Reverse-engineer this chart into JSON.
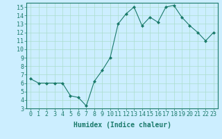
{
  "x": [
    0,
    1,
    2,
    3,
    4,
    5,
    6,
    7,
    8,
    9,
    10,
    11,
    12,
    13,
    14,
    15,
    16,
    17,
    18,
    19,
    20,
    21,
    22,
    23
  ],
  "y": [
    6.5,
    6.0,
    6.0,
    6.0,
    6.0,
    4.5,
    4.3,
    3.3,
    6.2,
    7.5,
    9.0,
    13.0,
    14.2,
    15.0,
    12.8,
    13.8,
    13.2,
    15.0,
    15.2,
    13.8,
    12.8,
    12.0,
    11.0,
    12.0
  ],
  "line_color": "#1a7a6a",
  "marker": "D",
  "marker_size": 2,
  "bg_color": "#cceeff",
  "grid_color": "#aaddcc",
  "xlabel": "Humidex (Indice chaleur)",
  "xlim": [
    -0.5,
    23.5
  ],
  "ylim": [
    3,
    15.5
  ],
  "yticks": [
    3,
    4,
    5,
    6,
    7,
    8,
    9,
    10,
    11,
    12,
    13,
    14,
    15
  ],
  "xticks": [
    0,
    1,
    2,
    3,
    4,
    5,
    6,
    7,
    8,
    9,
    10,
    11,
    12,
    13,
    14,
    15,
    16,
    17,
    18,
    19,
    20,
    21,
    22,
    23
  ],
  "xlabel_fontsize": 7,
  "tick_fontsize": 6,
  "linewidth": 0.8
}
